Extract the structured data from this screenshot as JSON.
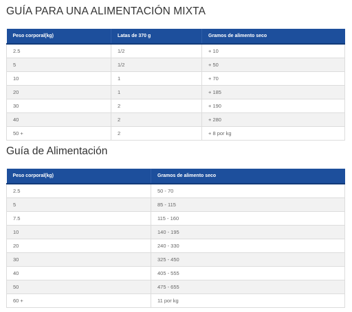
{
  "mixed_guide": {
    "title": "GUÍA PARA UNA ALIMENTACIÓN MIXTA",
    "headers": [
      "Peso corporal(kg)",
      "Latas de 370 g",
      "Gramos de alimento seco"
    ],
    "rows": [
      [
        "2.5",
        "1/2",
        "+ 10"
      ],
      [
        "5",
        "1/2",
        "+ 50"
      ],
      [
        "10",
        "1",
        "+ 70"
      ],
      [
        "20",
        "1",
        "+ 185"
      ],
      [
        "30",
        "2",
        "+ 190"
      ],
      [
        "40",
        "2",
        "+ 280"
      ],
      [
        "50 +",
        "2",
        "+ 8 por kg"
      ]
    ]
  },
  "feeding_guide": {
    "title": "Guía de Alimentación",
    "headers": [
      "Peso corporal(kg)",
      "Gramos de alimento seco"
    ],
    "rows": [
      [
        "2.5",
        "50 - 70"
      ],
      [
        "5",
        "85 - 115"
      ],
      [
        "7.5",
        "115 - 160"
      ],
      [
        "10",
        "140 - 195"
      ],
      [
        "20",
        "240 - 330"
      ],
      [
        "30",
        "325 - 450"
      ],
      [
        "40",
        "405 - 555"
      ],
      [
        "50",
        "475 - 655"
      ],
      [
        "60 +",
        "11 por kg"
      ]
    ]
  }
}
